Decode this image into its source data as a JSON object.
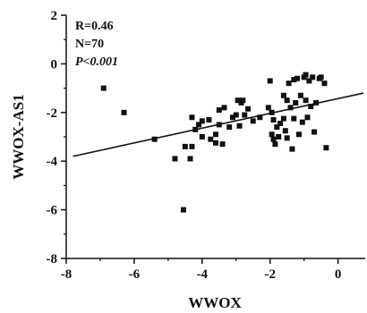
{
  "chart_data": {
    "type": "scatter",
    "title": "",
    "xlabel": "WWOX",
    "ylabel": "WWOX-AS1",
    "xlim": [
      -8,
      0.8
    ],
    "ylim": [
      -8,
      2
    ],
    "x_ticks": [
      -8,
      -6,
      -4,
      -2,
      0
    ],
    "y_ticks": [
      2,
      0,
      -2,
      -4,
      -6,
      -8
    ],
    "x_tick_labels": [
      "-8",
      "-6",
      "-4",
      "-2",
      "0"
    ],
    "y_tick_labels": [
      "2",
      "0",
      "-2",
      "-4",
      "-6",
      "-8"
    ],
    "grid": false,
    "legend": false,
    "annotations": [
      "R=0.46",
      "N=70",
      "P<0.001"
    ],
    "series": [
      {
        "marker": "square",
        "color": "#111111",
        "points": [
          [
            -6.9,
            -1.0
          ],
          [
            -6.3,
            -2.0
          ],
          [
            -5.4,
            -3.1
          ],
          [
            -4.8,
            -3.9
          ],
          [
            -4.55,
            -6.0
          ],
          [
            -4.5,
            -3.4
          ],
          [
            -4.35,
            -3.9
          ],
          [
            -4.3,
            -3.4
          ],
          [
            -4.3,
            -2.2
          ],
          [
            -4.2,
            -2.7
          ],
          [
            -4.1,
            -2.5
          ],
          [
            -4.0,
            -2.35
          ],
          [
            -3.8,
            -2.3
          ],
          [
            -3.75,
            -3.1
          ],
          [
            -3.6,
            -2.9
          ],
          [
            -3.5,
            -2.5
          ],
          [
            -3.5,
            -1.9
          ],
          [
            -3.4,
            -3.3
          ],
          [
            -3.35,
            -1.8
          ],
          [
            -3.2,
            -2.6
          ],
          [
            -3.1,
            -2.2
          ],
          [
            -3.0,
            -2.1
          ],
          [
            -2.95,
            -1.5
          ],
          [
            -2.85,
            -1.6
          ],
          [
            -2.8,
            -1.5
          ],
          [
            -2.75,
            -2.1
          ],
          [
            -2.65,
            -1.85
          ],
          [
            -2.5,
            -2.35
          ],
          [
            -2.05,
            -1.8
          ],
          [
            -2.0,
            -0.7
          ],
          [
            -1.95,
            -2.0
          ],
          [
            -1.95,
            -2.9
          ],
          [
            -1.9,
            -2.3
          ],
          [
            -1.9,
            -3.1
          ],
          [
            -1.85,
            -3.3
          ],
          [
            -1.8,
            -2.6
          ],
          [
            -1.75,
            -3.0
          ],
          [
            -1.7,
            -2.45
          ],
          [
            -1.6,
            -2.25
          ],
          [
            -1.55,
            -2.75
          ],
          [
            -1.5,
            -1.5
          ],
          [
            -1.45,
            -0.8
          ],
          [
            -1.4,
            -1.8
          ],
          [
            -1.35,
            -3.5
          ],
          [
            -1.3,
            -2.25
          ],
          [
            -1.25,
            -1.6
          ],
          [
            -1.2,
            -0.6
          ],
          [
            -1.15,
            -2.9
          ],
          [
            -1.1,
            -1.3
          ],
          [
            -1.05,
            -2.4
          ],
          [
            -1.0,
            -0.55
          ],
          [
            -0.95,
            -1.5
          ],
          [
            -0.9,
            -2.2
          ],
          [
            -0.85,
            -0.7
          ],
          [
            -0.8,
            -1.75
          ],
          [
            -0.75,
            -0.55
          ],
          [
            -0.7,
            -2.8
          ],
          [
            -0.65,
            -1.6
          ],
          [
            -0.55,
            -0.6
          ],
          [
            -0.4,
            -0.8
          ],
          [
            -0.35,
            -3.45
          ],
          [
            -1.6,
            -1.3
          ],
          [
            -0.95,
            -0.45
          ],
          [
            -2.3,
            -2.2
          ],
          [
            -3.6,
            -3.25
          ],
          [
            -1.5,
            -3.05
          ],
          [
            -1.3,
            -0.65
          ],
          [
            -0.5,
            -0.55
          ],
          [
            -2.9,
            -2.55
          ],
          [
            -4.0,
            -3.0
          ]
        ]
      }
    ],
    "fit_line": {
      "x": [
        -7.8,
        0.75
      ],
      "y": [
        -3.8,
        -1.2
      ]
    }
  }
}
